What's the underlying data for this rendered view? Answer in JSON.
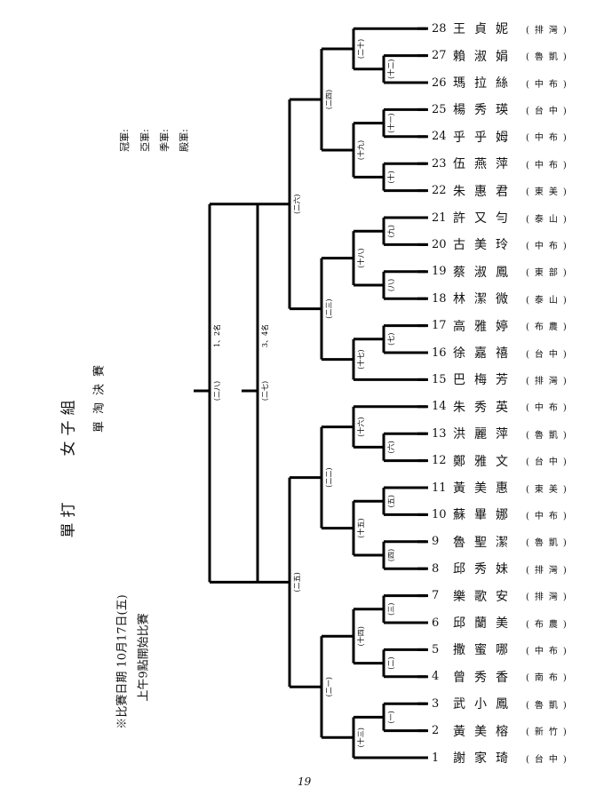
{
  "heading": {
    "event": "單打　　女子組",
    "type": "單淘決賽"
  },
  "schedule": {
    "date_line": "※比賽日期 10月17日(五)",
    "start_line": "上午9點開始比賽"
  },
  "placings": [
    "冠軍:",
    "亞軍:",
    "季軍:",
    "殿軍:"
  ],
  "players": [
    {
      "no": "1",
      "name": "謝家琦",
      "team": "(台中)"
    },
    {
      "no": "2",
      "name": "黃美榕",
      "team": "(新竹)"
    },
    {
      "no": "3",
      "name": "武小鳳",
      "team": "(魯凱)"
    },
    {
      "no": "4",
      "name": "曾秀香",
      "team": "(南布)"
    },
    {
      "no": "5",
      "name": "撒蜜哪",
      "team": "(中布)"
    },
    {
      "no": "6",
      "name": "邱蘭美",
      "team": "(布農)"
    },
    {
      "no": "7",
      "name": "樂歌安",
      "team": "(排灣)"
    },
    {
      "no": "8",
      "name": "邱秀妹",
      "team": "(排灣)"
    },
    {
      "no": "9",
      "name": "魯聖潔",
      "team": "(魯凱)"
    },
    {
      "no": "10",
      "name": "蘇畢娜",
      "team": "(中布)"
    },
    {
      "no": "11",
      "name": "黃美惠",
      "team": "(東美)"
    },
    {
      "no": "12",
      "name": "鄭雅文",
      "team": "(台中)"
    },
    {
      "no": "13",
      "name": "洪麗萍",
      "team": "(魯凱)"
    },
    {
      "no": "14",
      "name": "朱秀英",
      "team": "(中布)"
    },
    {
      "no": "15",
      "name": "巴梅芳",
      "team": "(排灣)"
    },
    {
      "no": "16",
      "name": "徐嘉禧",
      "team": "(台中)"
    },
    {
      "no": "17",
      "name": "高雅婷",
      "team": "(布農)"
    },
    {
      "no": "18",
      "name": "林潔微",
      "team": "(泰山)"
    },
    {
      "no": "19",
      "name": "蔡淑鳳",
      "team": "(東部)"
    },
    {
      "no": "20",
      "name": "古美玲",
      "team": "(中布)"
    },
    {
      "no": "21",
      "name": "許又勻",
      "team": "(泰山)"
    },
    {
      "no": "22",
      "name": "朱惠君",
      "team": "(東美)"
    },
    {
      "no": "23",
      "name": "伍燕萍",
      "team": "(中布)"
    },
    {
      "no": "24",
      "name": "乎乎姆",
      "team": "(中布)"
    },
    {
      "no": "25",
      "name": "楊秀瑛",
      "team": "(台中)"
    },
    {
      "no": "26",
      "name": "瑪拉絲",
      "team": "(中布)"
    },
    {
      "no": "27",
      "name": "賴淑娟",
      "team": "(魯凱)"
    },
    {
      "no": "28",
      "name": "王貞妮",
      "team": "(排灣)"
    }
  ],
  "matches": {
    "m1": "(一)",
    "m2": "(二)",
    "m3": "(三)",
    "m4": "(四)",
    "m5": "(五)",
    "m6": "(六)",
    "m7": "(七)",
    "m8": "(八)",
    "m9": "(九)",
    "m10": "(十)",
    "m11": "(十一)",
    "m12": "(十二)",
    "m13": "(十三)",
    "m14": "(十四)",
    "m15": "(十五)",
    "m16": "(十六)",
    "m17": "(十七)",
    "m18": "(十八)",
    "m19": "(十九)",
    "m20": "(二十)",
    "m21": "(二一)",
    "m22": "(二二)",
    "m23": "(二三)",
    "m24": "(二四)",
    "m25": "(二五)",
    "m26": "(二六)",
    "m27": "(二七)",
    "m28": "(二八)"
  },
  "finals": {
    "first_second": "1、2名",
    "third_fourth": "3、4名"
  },
  "page_number": "19"
}
